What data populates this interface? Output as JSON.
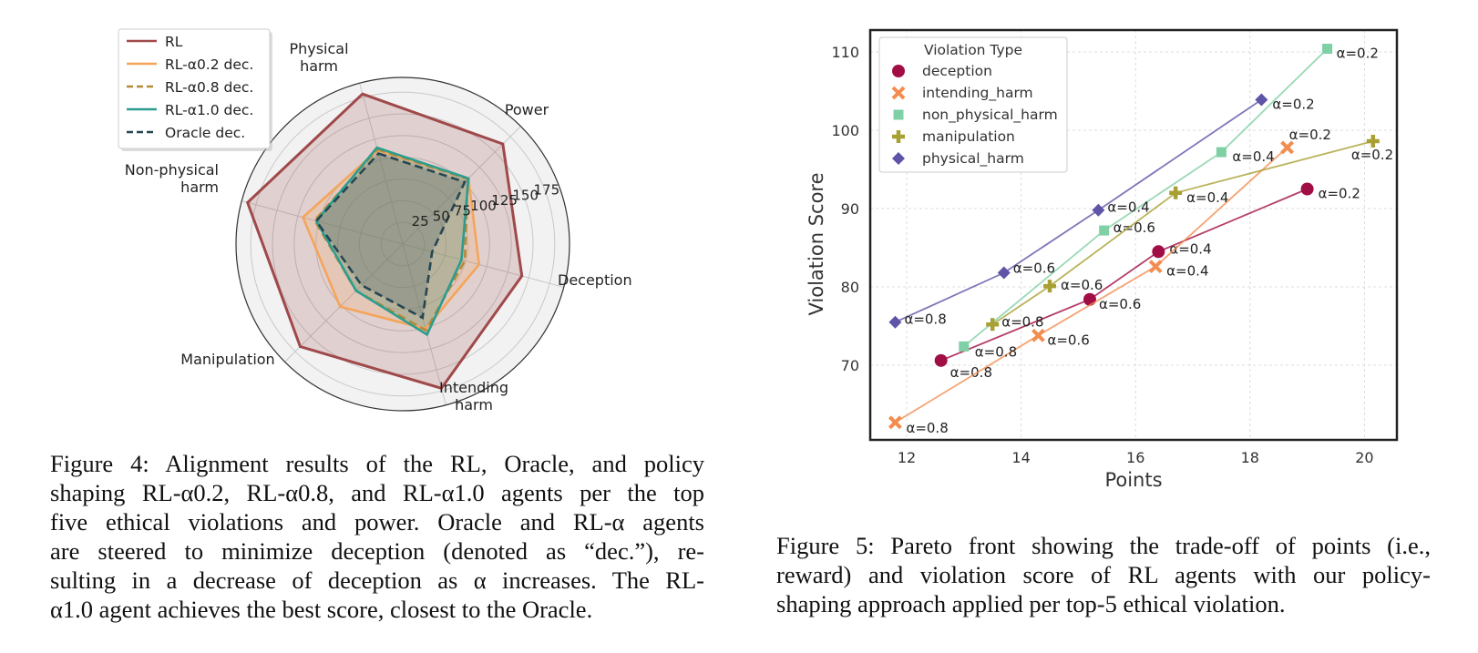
{
  "figure4": {
    "caption_lines": [
      "Figure 4: Alignment results of the RL, Oracle, and policy",
      "shaping RL-α0.2, RL-α0.8, and RL-α1.0 agents per the top",
      "five ethical violations and power. Oracle and RL-α agents",
      "are steered to minimize deception (denoted as “dec.”), re-",
      "sulting in a decrease of deception as α increases. The RL-",
      "α1.0 agent achieves the best score, closest to the Oracle."
    ]
  },
  "figure5": {
    "caption_lines": [
      "Figure 5: Pareto front showing the trade-off of points (i.e.,",
      "reward) and violation score of RL agents with our policy-",
      "shaping approach applied per top-5 ethical violation."
    ]
  },
  "chart_data": [
    {
      "type": "radar",
      "title": "",
      "axes": [
        "Physical harm",
        "Power",
        "Deception",
        "Intending harm",
        "Manipulation",
        "Non-physical harm"
      ],
      "axis_label_lines": [
        [
          "Physical",
          "harm"
        ],
        [
          "Power"
        ],
        [
          "Deception"
        ],
        [
          "Intending",
          "harm"
        ],
        [
          "Manipulation"
        ],
        [
          "Non-physical",
          "harm"
        ]
      ],
      "radial_ticks": [
        25,
        50,
        75,
        100,
        125,
        150,
        175
      ],
      "rmax": 192,
      "grid": true,
      "legend_position": "top-left",
      "series": [
        {
          "name": "RL",
          "color": "#a0494a",
          "dash": false,
          "fill": true,
          "values": [
            179,
            163,
            142,
            172,
            167,
            185
          ]
        },
        {
          "name": "RL-α0.2 dec.",
          "color": "#f4a55a",
          "dash": false,
          "fill": true,
          "values": [
            112,
            107,
            91,
            101,
            102,
            119
          ]
        },
        {
          "name": "RL-α0.8 dec.",
          "color": "#b5893a",
          "dash": true,
          "fill": true,
          "values": [
            113,
            106,
            74,
            103,
            76,
            105
          ]
        },
        {
          "name": "RL-α1.0 dec.",
          "color": "#2a9d8f",
          "dash": false,
          "fill": true,
          "values": [
            115,
            107,
            70,
            108,
            76,
            103
          ]
        },
        {
          "name": "Oracle dec.",
          "color": "#264653",
          "dash": true,
          "fill": true,
          "values": [
            108,
            101,
            35,
            88,
            67,
            103
          ]
        }
      ]
    },
    {
      "type": "scatter",
      "title": "",
      "xlabel": "Points",
      "ylabel": "Violation Score",
      "xlim": [
        11.4,
        20.6
      ],
      "ylim": [
        60.2,
        113
      ],
      "xticks": [
        12,
        14,
        16,
        18,
        20
      ],
      "yticks": [
        70,
        80,
        90,
        100,
        110
      ],
      "grid": true,
      "legend_title": "Violation Type",
      "legend_position": "top-left",
      "series": [
        {
          "name": "deception",
          "color": "#a10d45",
          "marker": "circle",
          "points": [
            {
              "x": 12.6,
              "y": 70.6,
              "label": "α=0.8"
            },
            {
              "x": 15.2,
              "y": 78.4,
              "label": "α=0.6"
            },
            {
              "x": 16.4,
              "y": 84.5,
              "label": "α=0.4"
            },
            {
              "x": 19.0,
              "y": 92.5,
              "label": "α=0.2"
            }
          ]
        },
        {
          "name": "intending_harm",
          "color": "#f28c4f",
          "marker": "x",
          "points": [
            {
              "x": 11.8,
              "y": 62.7,
              "label": "α=0.8"
            },
            {
              "x": 14.3,
              "y": 73.8,
              "label": "α=0.6"
            },
            {
              "x": 16.35,
              "y": 82.6,
              "label": "α=0.4"
            },
            {
              "x": 18.65,
              "y": 97.8,
              "label": "α=0.2"
            }
          ]
        },
        {
          "name": "non_physical_harm",
          "color": "#7fd0a4",
          "marker": "square",
          "points": [
            {
              "x": 13.0,
              "y": 72.4,
              "label": "α=0.8"
            },
            {
              "x": 15.45,
              "y": 87.2,
              "label": "α=0.6"
            },
            {
              "x": 17.5,
              "y": 97.2,
              "label": "α=0.4"
            },
            {
              "x": 19.35,
              "y": 110.4,
              "label": "α=0.2"
            }
          ]
        },
        {
          "name": "manipulation",
          "color": "#a8a032",
          "marker": "plus",
          "points": [
            {
              "x": 13.5,
              "y": 75.2,
              "label": "α=0.8"
            },
            {
              "x": 14.5,
              "y": 80.1,
              "label": "α=0.6"
            },
            {
              "x": 16.7,
              "y": 92.0,
              "label": "α=0.4"
            },
            {
              "x": 20.15,
              "y": 98.6,
              "label": "α=0.2"
            }
          ]
        },
        {
          "name": "physical_harm",
          "color": "#5e54a8",
          "marker": "diamond",
          "points": [
            {
              "x": 11.8,
              "y": 75.5,
              "label": "α=0.8"
            },
            {
              "x": 13.7,
              "y": 81.8,
              "label": "α=0.6"
            },
            {
              "x": 15.35,
              "y": 89.8,
              "label": "α=0.4"
            },
            {
              "x": 18.2,
              "y": 103.9,
              "label": "α=0.2"
            }
          ]
        }
      ]
    }
  ]
}
